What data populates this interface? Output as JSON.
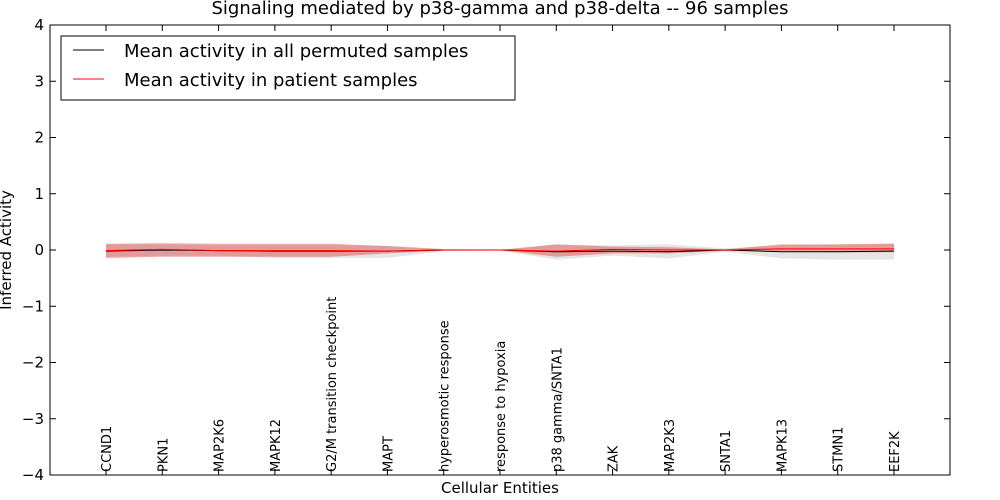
{
  "chart_data": {
    "type": "line",
    "title": "Signaling mediated by p38-gamma and p38-delta -- 96 samples",
    "xlabel": "Cellular Entities",
    "ylabel": "Inferred Activity",
    "ylim": [
      -4,
      4
    ],
    "yticks": [
      -4,
      -3,
      -2,
      -1,
      0,
      1,
      2,
      3,
      4
    ],
    "ytick_labels": [
      "−4",
      "−3",
      "−2",
      "−1",
      "0",
      "1",
      "2",
      "3",
      "4"
    ],
    "categories": [
      "CCND1",
      "PKN1",
      "MAP2K6",
      "MAPK12",
      "G2/M transition checkpoint",
      "MAPT",
      "hyperosmotic response",
      "response to hypoxia",
      "p38 gamma/SNTA1",
      "ZAK",
      "MAP2K3",
      "SNTA1",
      "MAPK13",
      "STMN1",
      "EEF2K"
    ],
    "legend_location": "top-left",
    "series": [
      {
        "name": "Mean activity in all permuted samples",
        "color": "#000000",
        "values": [
          -0.02,
          0.0,
          -0.01,
          -0.02,
          -0.02,
          -0.02,
          0.0,
          0.0,
          -0.03,
          -0.02,
          -0.03,
          0.0,
          -0.03,
          -0.03,
          -0.02
        ],
        "band_low": [
          -0.12,
          -0.1,
          -0.1,
          -0.14,
          -0.14,
          -0.14,
          -0.02,
          -0.01,
          -0.17,
          -0.1,
          -0.15,
          -0.03,
          -0.15,
          -0.17,
          -0.17
        ],
        "band_high": [
          0.1,
          0.1,
          0.08,
          0.08,
          0.08,
          0.08,
          0.02,
          0.01,
          0.1,
          0.08,
          0.1,
          0.03,
          0.08,
          0.1,
          0.12
        ],
        "band_color": "#aaaaaa"
      },
      {
        "name": "Mean activity in patient samples",
        "color": "#ff0000",
        "values": [
          -0.01,
          0.01,
          -0.01,
          -0.01,
          -0.01,
          -0.02,
          0.0,
          0.0,
          -0.02,
          0.01,
          0.0,
          0.0,
          0.02,
          0.02,
          0.02
        ],
        "band_low": [
          -0.14,
          -0.12,
          -0.12,
          -0.12,
          -0.12,
          -0.06,
          -0.01,
          0.0,
          -0.12,
          -0.06,
          -0.06,
          -0.01,
          -0.02,
          -0.04,
          -0.04
        ],
        "band_high": [
          0.11,
          0.12,
          0.11,
          0.11,
          0.11,
          0.07,
          0.01,
          0.0,
          0.1,
          0.06,
          0.05,
          0.01,
          0.1,
          0.1,
          0.11
        ],
        "band_color": "#e05050"
      }
    ]
  }
}
